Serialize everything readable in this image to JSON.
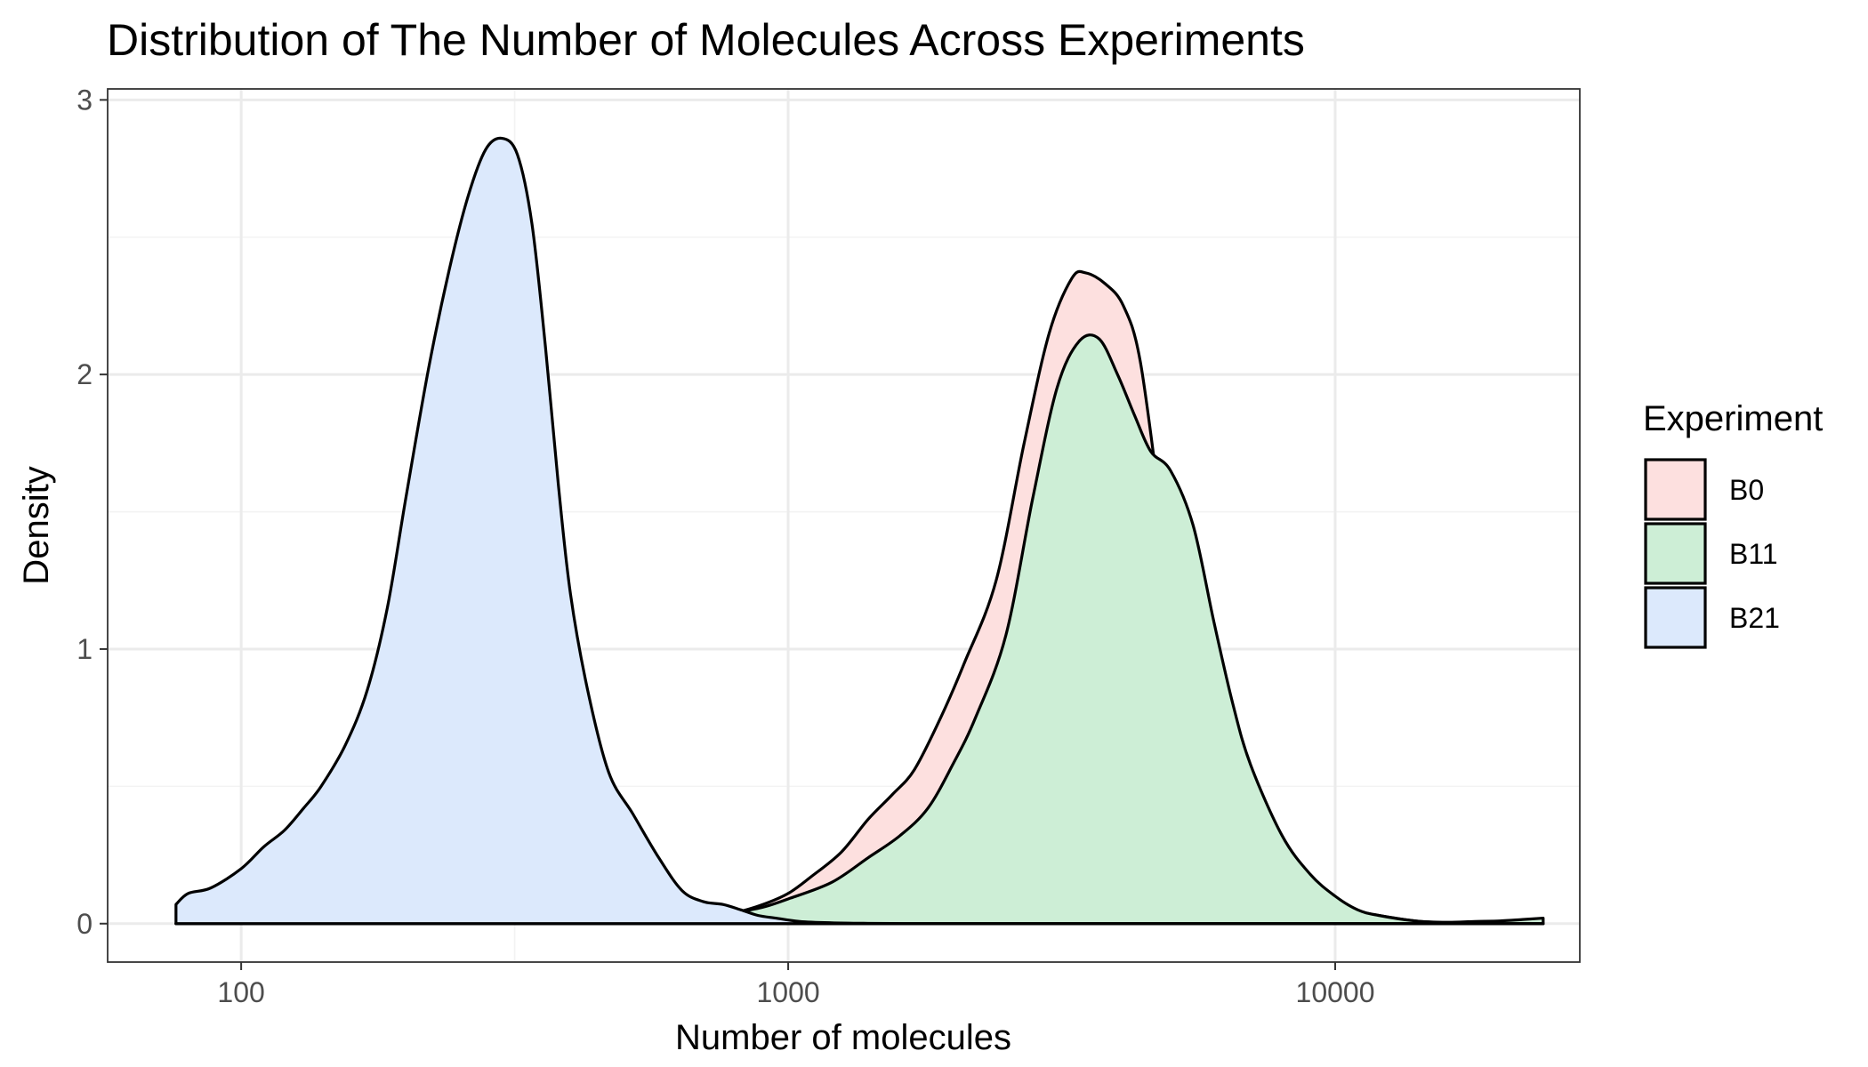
{
  "chart_data": {
    "type": "area",
    "title": "Distribution of The Number of Molecules Across Experiments",
    "xlabel": "Number of molecules",
    "ylabel": "Density",
    "x_scale": "log10",
    "xlim": [
      57,
      28000
    ],
    "ylim": [
      -0.14,
      3.04
    ],
    "x_ticks": [
      {
        "value": 100,
        "label": "100"
      },
      {
        "value": 1000,
        "label": "1000"
      },
      {
        "value": 10000,
        "label": "10000"
      }
    ],
    "y_ticks": [
      {
        "value": 0,
        "label": "0"
      },
      {
        "value": 1,
        "label": "1"
      },
      {
        "value": 2,
        "label": "2"
      },
      {
        "value": 3,
        "label": "3"
      }
    ],
    "grid": true,
    "legend": {
      "title": "Experiment",
      "position": "right",
      "items": [
        {
          "label": "B0",
          "color": "#fde0df"
        },
        {
          "label": "B11",
          "color": "#cdeed6"
        },
        {
          "label": "B21",
          "color": "#dce9fc"
        }
      ]
    },
    "series": [
      {
        "name": "B0",
        "color": "#fde0df",
        "x": [
          76,
          400,
          560,
          700,
          800,
          900,
          1000,
          1100,
          1250,
          1400,
          1550,
          1700,
          1900,
          2100,
          2400,
          2700,
          3000,
          3300,
          3500,
          3800,
          4100,
          4400,
          4800,
          5200,
          5600,
          6000,
          6500,
          7000,
          8000,
          9000,
          10000,
          12000,
          14000,
          16000,
          18000,
          20000,
          22000,
          24000
        ],
        "y": [
          0,
          0,
          0.005,
          0.02,
          0.04,
          0.07,
          0.11,
          0.17,
          0.26,
          0.38,
          0.47,
          0.56,
          0.75,
          0.95,
          1.25,
          1.75,
          2.15,
          2.35,
          2.37,
          2.33,
          2.25,
          2.05,
          1.5,
          0.95,
          0.5,
          0.3,
          0.18,
          0.13,
          0.1,
          0.08,
          0.06,
          0.03,
          0.01,
          0.003,
          0.001,
          0,
          0,
          0
        ]
      },
      {
        "name": "B11",
        "color": "#cdeed6",
        "x": [
          76,
          400,
          560,
          700,
          800,
          900,
          1000,
          1200,
          1400,
          1600,
          1800,
          2000,
          2200,
          2500,
          2800,
          3100,
          3400,
          3700,
          4000,
          4300,
          4600,
          5000,
          5500,
          6000,
          6500,
          7000,
          8000,
          9000,
          10000,
          11000,
          12000,
          14000,
          16000,
          18000,
          20000,
          22000,
          24000
        ],
        "y": [
          0,
          0,
          0.005,
          0.02,
          0.04,
          0.06,
          0.09,
          0.15,
          0.24,
          0.32,
          0.42,
          0.58,
          0.75,
          1.05,
          1.55,
          1.95,
          2.12,
          2.13,
          2.0,
          1.85,
          1.72,
          1.65,
          1.45,
          1.1,
          0.8,
          0.58,
          0.32,
          0.18,
          0.1,
          0.05,
          0.03,
          0.01,
          0.005,
          0.008,
          0.01,
          0.015,
          0.02
        ]
      },
      {
        "name": "B21",
        "color": "#dce9fc",
        "x": [
          76,
          80,
          88,
          100,
          110,
          120,
          130,
          140,
          155,
          170,
          185,
          200,
          220,
          240,
          260,
          280,
          300,
          320,
          340,
          360,
          380,
          400,
          430,
          470,
          520,
          580,
          640,
          700,
          760,
          820,
          880,
          950,
          1050,
          1200,
          1400,
          1700,
          2000,
          2500,
          3500,
          5000,
          8000,
          15000,
          24000
        ],
        "y": [
          0.07,
          0.11,
          0.13,
          0.2,
          0.28,
          0.34,
          0.42,
          0.5,
          0.65,
          0.85,
          1.15,
          1.55,
          2.02,
          2.38,
          2.65,
          2.82,
          2.86,
          2.8,
          2.55,
          2.1,
          1.6,
          1.2,
          0.85,
          0.55,
          0.4,
          0.24,
          0.12,
          0.08,
          0.07,
          0.05,
          0.03,
          0.02,
          0.008,
          0.003,
          0.001,
          0,
          0,
          0,
          0,
          0,
          0,
          0,
          0
        ]
      }
    ]
  }
}
